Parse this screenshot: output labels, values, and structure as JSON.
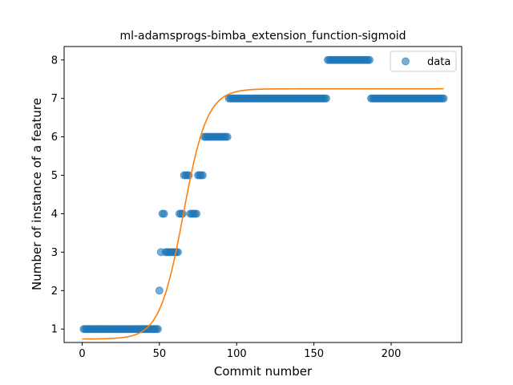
{
  "chart_data": {
    "type": "scatter",
    "title": "ml-adamsprogs-bimba_extension_function-sigmoid",
    "xlabel": "Commit number",
    "ylabel": "Number of instance of a feature",
    "xlim": [
      -11.65,
      245.65
    ],
    "ylim": [
      0.65,
      8.35
    ],
    "xticks": [
      0,
      50,
      100,
      150,
      200
    ],
    "yticks": [
      1,
      2,
      3,
      4,
      5,
      6,
      7,
      8
    ],
    "legend": {
      "position": "top-right",
      "entries": [
        "data"
      ]
    },
    "grid": false,
    "colors": {
      "data": "#1f77b4",
      "fit": "#ff7f0e"
    },
    "series": [
      {
        "name": "data",
        "kind": "scatter",
        "segments": [
          {
            "x_start": 1,
            "x_end": 49,
            "y": 1
          },
          {
            "x_start": 50,
            "x_end": 50,
            "y": 2
          },
          {
            "x_start": 51,
            "x_end": 51,
            "y": 3
          },
          {
            "x_start": 52,
            "x_end": 53,
            "y": 4
          },
          {
            "x_start": 54,
            "x_end": 62,
            "y": 3
          },
          {
            "x_start": 63,
            "x_end": 65,
            "y": 4
          },
          {
            "x_start": 66,
            "x_end": 69,
            "y": 5
          },
          {
            "x_start": 70,
            "x_end": 74,
            "y": 4
          },
          {
            "x_start": 75,
            "x_end": 78,
            "y": 5
          },
          {
            "x_start": 79,
            "x_end": 94,
            "y": 6
          },
          {
            "x_start": 95,
            "x_end": 158,
            "y": 7
          },
          {
            "x_start": 159,
            "x_end": 186,
            "y": 8
          },
          {
            "x_start": 187,
            "x_end": 234,
            "y": 7
          }
        ]
      },
      {
        "kind": "sigmoid-fit",
        "x_range": [
          0,
          234
        ],
        "lower": 0.74,
        "upper": 7.25,
        "midpoint": 65.5,
        "rate": 0.13
      }
    ]
  }
}
